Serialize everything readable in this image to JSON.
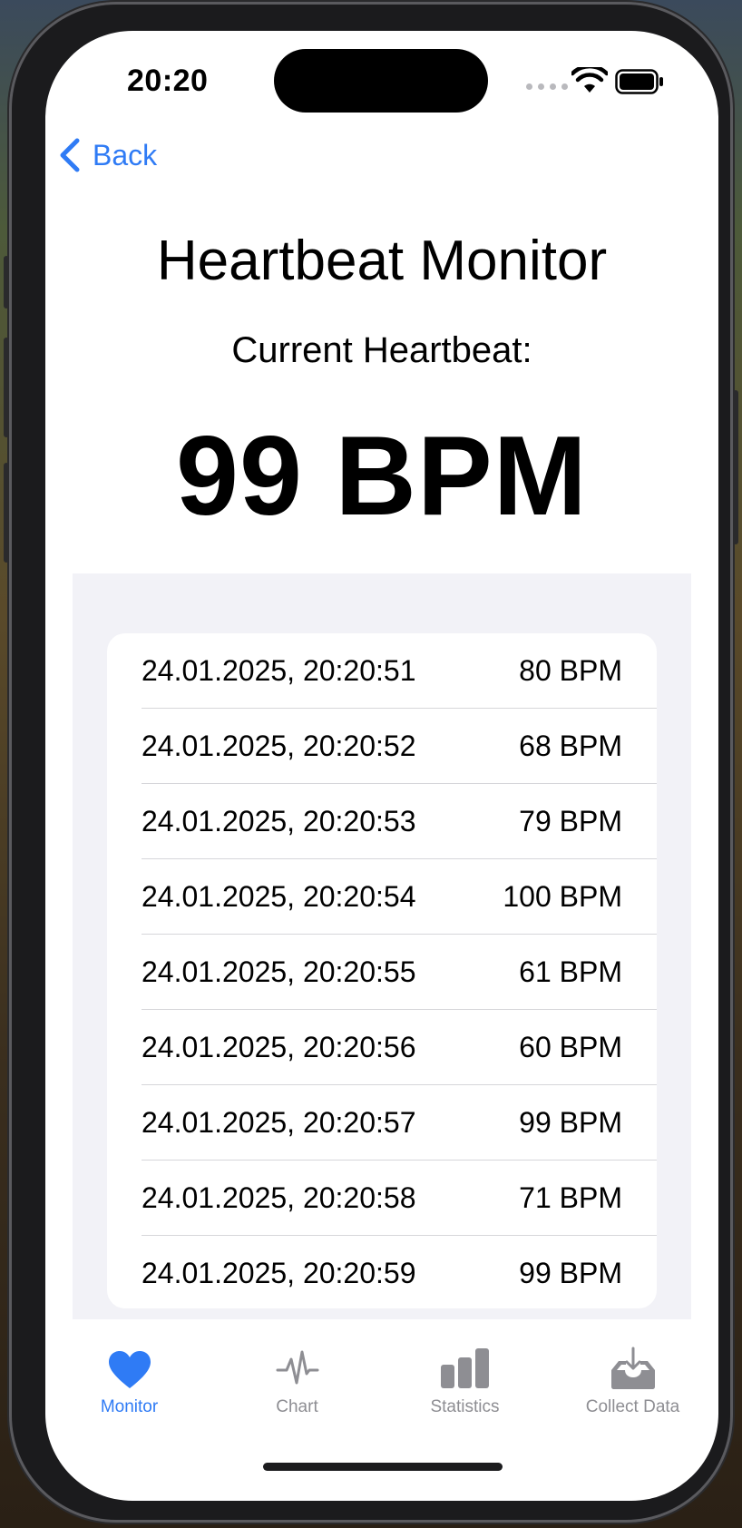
{
  "status_bar": {
    "time": "20:20"
  },
  "nav": {
    "back_label": "Back"
  },
  "header": {
    "title": "Heartbeat Monitor",
    "subtitle": "Current Heartbeat:",
    "current_bpm": "99 BPM"
  },
  "readings": [
    {
      "timestamp": "24.01.2025, 20:20:51",
      "value": "80 BPM"
    },
    {
      "timestamp": "24.01.2025, 20:20:52",
      "value": "68 BPM"
    },
    {
      "timestamp": "24.01.2025, 20:20:53",
      "value": "79 BPM"
    },
    {
      "timestamp": "24.01.2025, 20:20:54",
      "value": "100 BPM"
    },
    {
      "timestamp": "24.01.2025, 20:20:55",
      "value": "61 BPM"
    },
    {
      "timestamp": "24.01.2025, 20:20:56",
      "value": "60 BPM"
    },
    {
      "timestamp": "24.01.2025, 20:20:57",
      "value": "99 BPM"
    },
    {
      "timestamp": "24.01.2025, 20:20:58",
      "value": "71 BPM"
    },
    {
      "timestamp": "24.01.2025, 20:20:59",
      "value": "99 BPM"
    }
  ],
  "tabs": [
    {
      "label": "Monitor",
      "icon": "heart-icon",
      "active": true
    },
    {
      "label": "Chart",
      "icon": "waveform-icon",
      "active": false
    },
    {
      "label": "Statistics",
      "icon": "bar-chart-icon",
      "active": false
    },
    {
      "label": "Collect Data",
      "icon": "tray-download-icon",
      "active": false
    }
  ],
  "colors": {
    "accent": "#2f7bf5",
    "inactive": "#8e8e93",
    "list_background": "#f2f2f7",
    "separator": "#d6d6da"
  }
}
